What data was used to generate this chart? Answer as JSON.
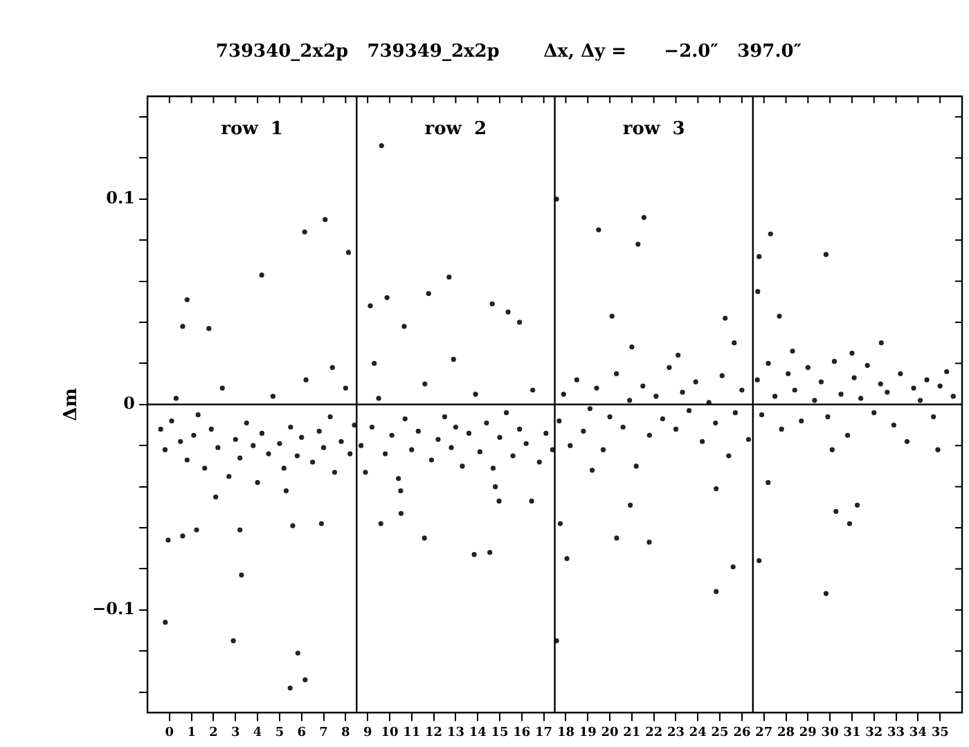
{
  "chart_data": {
    "type": "scatter",
    "title": "739340_2x2p   739349_2x2p       Δx, Δy =      −2.0″   397.0″",
    "ylabel": "Δm",
    "x": [
      -0.4,
      -0.2,
      0.1,
      0.3,
      0.5,
      0.8,
      1.1,
      1.3,
      1.6,
      1.9,
      2.2,
      2.4,
      2.7,
      3.0,
      3.2,
      3.5,
      3.8,
      4.0,
      4.2,
      4.5,
      4.7,
      5.0,
      5.2,
      5.5,
      5.8,
      6.0,
      6.2,
      6.5,
      6.8,
      7.0,
      7.3,
      7.5,
      7.8,
      8.0,
      8.2,
      8.4,
      7.4,
      2.1,
      5.3,
      8.7,
      8.9,
      9.2,
      9.5,
      9.8,
      10.1,
      10.4,
      10.7,
      11.0,
      11.3,
      11.6,
      11.9,
      12.2,
      12.5,
      12.8,
      13.0,
      13.3,
      13.6,
      13.9,
      14.1,
      14.4,
      14.7,
      15.0,
      15.3,
      15.6,
      15.9,
      16.2,
      16.5,
      16.8,
      17.1,
      17.4,
      9.3,
      12.9,
      10.5,
      14.8,
      17.7,
      17.9,
      18.2,
      18.5,
      18.8,
      19.1,
      19.4,
      19.7,
      20.0,
      20.3,
      20.6,
      20.9,
      21.2,
      21.5,
      21.8,
      22.1,
      22.4,
      22.7,
      23.0,
      23.3,
      23.6,
      23.9,
      24.2,
      24.5,
      24.8,
      25.1,
      25.4,
      25.7,
      26.0,
      26.3,
      21.0,
      23.1,
      19.2,
      26.7,
      26.9,
      27.2,
      27.5,
      27.8,
      28.1,
      28.4,
      28.7,
      29.0,
      29.3,
      29.6,
      29.9,
      30.2,
      30.5,
      30.8,
      31.1,
      31.4,
      31.7,
      32.0,
      32.3,
      32.6,
      32.9,
      33.2,
      33.5,
      33.8,
      34.1,
      34.4,
      34.7,
      35.0,
      35.3,
      35.6,
      28.3,
      31.0,
      34.9,
      30.1,
      6.14,
      7.07,
      8.13,
      4.19,
      0.8,
      0.6,
      1.79,
      -0.19,
      2.9,
      5.83,
      5.48,
      6.16,
      3.27,
      -0.06,
      0.6,
      1.23,
      3.2,
      5.6,
      6.9,
      9.63,
      9.12,
      9.88,
      10.66,
      11.77,
      12.7,
      14.66,
      15.38,
      15.9,
      9.6,
      11.58,
      13.84,
      14.55,
      14.97,
      16.45,
      10.52,
      17.58,
      19.49,
      21.55,
      21.28,
      20.1,
      25.65,
      25.24,
      17.75,
      18.05,
      17.58,
      20.93,
      20.31,
      21.79,
      24.83,
      25.6,
      24.83,
      27.3,
      26.78,
      26.72,
      27.7,
      29.82,
      32.33,
      26.78,
      27.19,
      29.82,
      30.27,
      30.89,
      31.24
    ],
    "values": [
      -0.012,
      -0.022,
      -0.008,
      0.003,
      -0.018,
      -0.027,
      -0.015,
      -0.005,
      -0.031,
      -0.012,
      -0.021,
      0.008,
      -0.035,
      -0.017,
      -0.026,
      -0.009,
      -0.02,
      -0.038,
      -0.014,
      -0.024,
      0.004,
      -0.019,
      -0.031,
      -0.011,
      -0.025,
      -0.016,
      0.012,
      -0.028,
      -0.013,
      -0.021,
      -0.006,
      -0.033,
      -0.018,
      0.008,
      -0.024,
      -0.01,
      0.018,
      -0.045,
      -0.042,
      -0.02,
      -0.033,
      -0.011,
      0.003,
      -0.024,
      -0.015,
      -0.036,
      -0.007,
      -0.022,
      -0.013,
      0.01,
      -0.027,
      -0.017,
      -0.006,
      -0.021,
      -0.011,
      -0.03,
      -0.014,
      0.005,
      -0.023,
      -0.009,
      -0.031,
      -0.016,
      -0.004,
      -0.025,
      -0.012,
      -0.019,
      0.007,
      -0.028,
      -0.014,
      -0.022,
      0.02,
      0.022,
      -0.042,
      -0.04,
      -0.008,
      0.005,
      -0.02,
      0.012,
      -0.013,
      -0.002,
      0.008,
      -0.022,
      -0.006,
      0.015,
      -0.011,
      0.002,
      -0.03,
      0.009,
      -0.015,
      0.004,
      -0.007,
      0.018,
      -0.012,
      0.006,
      -0.003,
      0.011,
      -0.018,
      0.001,
      -0.009,
      0.014,
      -0.025,
      -0.004,
      0.007,
      -0.017,
      0.028,
      0.024,
      -0.032,
      0.012,
      -0.005,
      0.02,
      0.004,
      -0.012,
      0.015,
      0.007,
      -0.008,
      0.018,
      0.002,
      0.011,
      -0.006,
      0.021,
      0.005,
      -0.015,
      0.013,
      0.003,
      0.019,
      -0.004,
      0.01,
      0.006,
      -0.01,
      0.015,
      -0.018,
      0.008,
      0.002,
      0.012,
      -0.006,
      0.009,
      0.016,
      0.004,
      0.026,
      0.025,
      -0.022,
      -0.022,
      0.084,
      0.09,
      0.074,
      0.063,
      0.051,
      0.038,
      0.037,
      -0.106,
      -0.115,
      -0.121,
      -0.138,
      -0.134,
      -0.083,
      -0.066,
      -0.064,
      -0.061,
      -0.061,
      -0.059,
      -0.058,
      0.126,
      0.048,
      0.052,
      0.038,
      0.054,
      0.062,
      0.049,
      0.045,
      0.04,
      -0.058,
      -0.065,
      -0.073,
      -0.072,
      -0.047,
      -0.047,
      -0.053,
      0.1,
      0.085,
      0.091,
      0.078,
      0.043,
      0.03,
      0.042,
      -0.058,
      -0.075,
      -0.115,
      -0.049,
      -0.065,
      -0.067,
      -0.091,
      -0.079,
      -0.041,
      0.083,
      0.072,
      0.055,
      0.043,
      0.073,
      0.03,
      -0.076,
      -0.038,
      -0.092,
      -0.052,
      -0.058,
      -0.049
    ],
    "color": "#222222",
    "marker": "circle",
    "xlim": [
      -1,
      36
    ],
    "xticks": [
      0,
      1,
      2,
      3,
      4,
      5,
      6,
      7,
      8,
      9,
      10,
      11,
      12,
      13,
      14,
      15,
      16,
      17,
      18,
      19,
      20,
      21,
      22,
      23,
      24,
      25,
      26,
      27,
      28,
      29,
      30,
      31,
      32,
      33,
      34,
      35
    ],
    "ylim": [
      -0.15,
      0.15
    ],
    "yticks": [
      {
        "value": -0.14,
        "label": null
      },
      {
        "value": -0.12,
        "label": null
      },
      -0.1,
      {
        "value": -0.08,
        "label": null
      },
      {
        "value": -0.06,
        "label": null
      },
      {
        "value": -0.04,
        "label": null
      },
      {
        "value": -0.02,
        "label": null
      },
      0,
      {
        "value": 0.02,
        "label": null
      },
      {
        "value": 0.04,
        "label": null
      },
      {
        "value": 0.06,
        "label": null
      },
      {
        "value": 0.08,
        "label": null
      },
      0.1,
      {
        "value": 0.12,
        "label": null
      },
      {
        "value": 0.14,
        "label": null
      }
    ],
    "ref_lines": [
      {
        "axis": "x",
        "value": 8.5,
        "color": "#000000"
      },
      {
        "axis": "x",
        "value": 17.5,
        "color": "#000000"
      },
      {
        "axis": "x",
        "value": 26.5,
        "color": "#000000"
      },
      {
        "axis": "y",
        "value": 0,
        "color": "#000000"
      }
    ],
    "annotations": [
      "row  1",
      "row  2",
      "row  3"
    ],
    "grid": false,
    "legend": false
  }
}
